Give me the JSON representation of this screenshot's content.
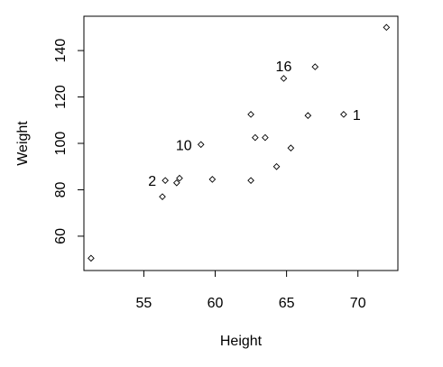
{
  "chart_data": {
    "type": "scatter",
    "xlabel": "Height",
    "ylabel": "Weight",
    "xlim": [
      50.8,
      72.8
    ],
    "ylim": [
      45.2,
      154.8
    ],
    "x_ticks": [
      55,
      60,
      65,
      70
    ],
    "y_ticks": [
      60,
      80,
      100,
      120,
      140
    ],
    "grid": false,
    "points": [
      {
        "x": 69.0,
        "y": 112.5,
        "label": "1"
      },
      {
        "x": 56.5,
        "y": 84.0,
        "label": "2"
      },
      {
        "x": 65.3,
        "y": 98.0,
        "label": ""
      },
      {
        "x": 56.3,
        "y": 77.0,
        "label": ""
      },
      {
        "x": 62.8,
        "y": 102.5,
        "label": ""
      },
      {
        "x": 63.5,
        "y": 102.5,
        "label": ""
      },
      {
        "x": 57.3,
        "y": 83.0,
        "label": ""
      },
      {
        "x": 59.8,
        "y": 84.5,
        "label": ""
      },
      {
        "x": 62.5,
        "y": 112.5,
        "label": ""
      },
      {
        "x": 59.0,
        "y": 99.5,
        "label": "10"
      },
      {
        "x": 51.3,
        "y": 50.5,
        "label": ""
      },
      {
        "x": 64.3,
        "y": 90.0,
        "label": ""
      },
      {
        "x": 57.5,
        "y": 85.0,
        "label": ""
      },
      {
        "x": 66.5,
        "y": 112.0,
        "label": ""
      },
      {
        "x": 72.0,
        "y": 150.0,
        "label": ""
      },
      {
        "x": 64.8,
        "y": 128.0,
        "label": "16"
      },
      {
        "x": 67.0,
        "y": 133.0,
        "label": ""
      },
      {
        "x": 62.5,
        "y": 84.0,
        "label": ""
      }
    ]
  }
}
